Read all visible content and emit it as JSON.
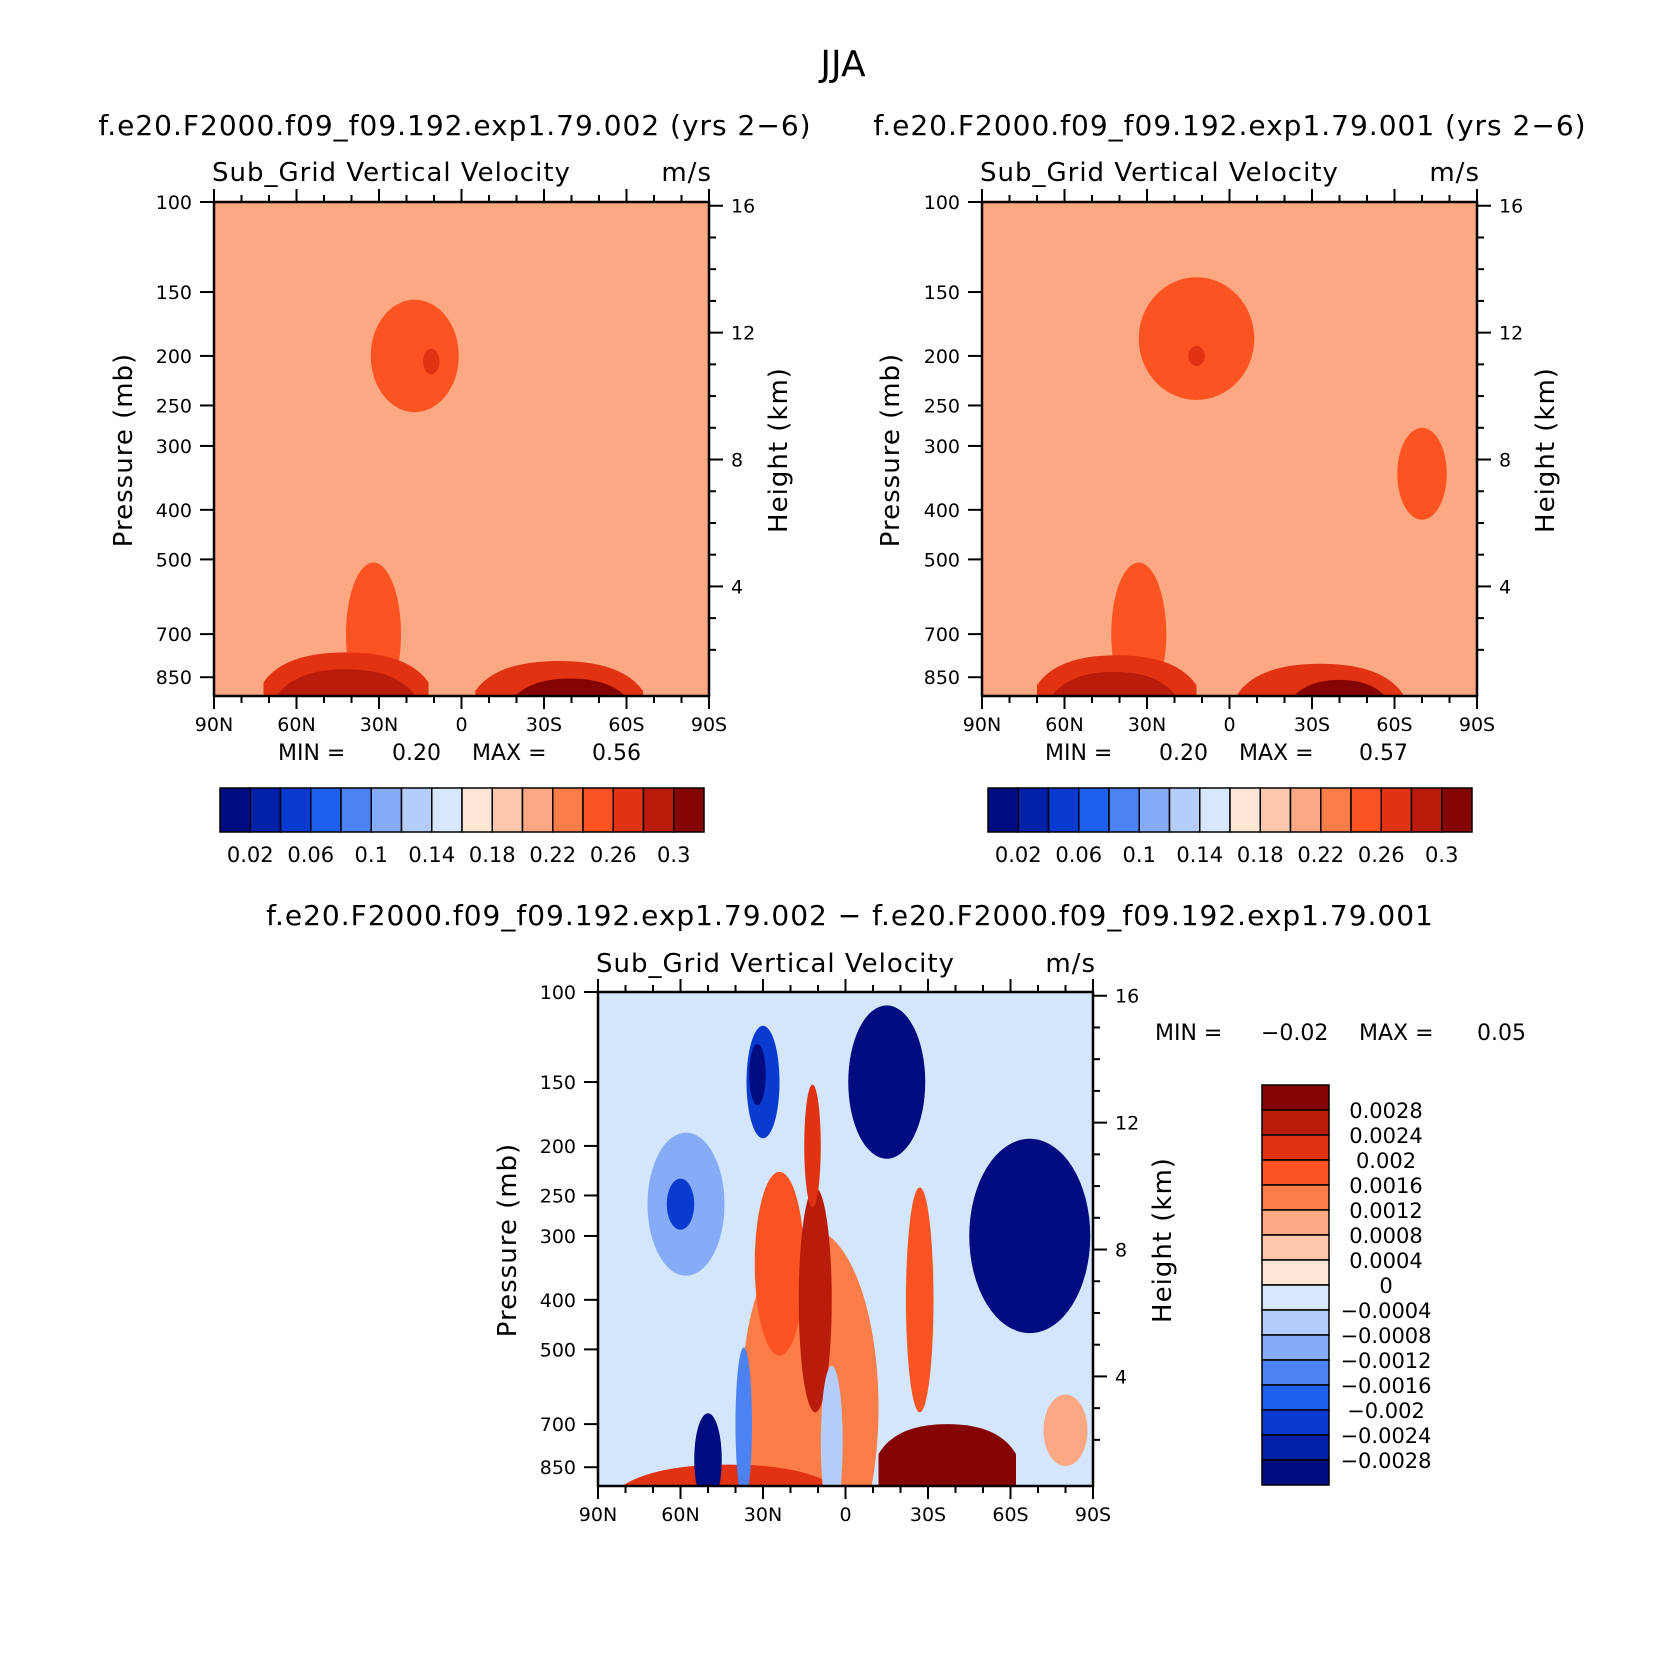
{
  "page": {
    "title": "JJA",
    "background": "#ffffff"
  },
  "panels": [
    {
      "title": "f.e20.F2000.f09_f09.192.exp1.79.002 (yrs 2−6)",
      "left_label": "Sub_Grid Vertical Velocity",
      "right_label": "m/s",
      "ylabel": "Pressure (mb)",
      "ylabel_right": "Height (km)",
      "min_label": "MIN =",
      "min_value": "0.20",
      "max_label": "MAX =",
      "max_value": "0.56",
      "background_color": "#fca983"
    },
    {
      "title": "f.e20.F2000.f09_f09.192.exp1.79.001 (yrs 2−6)",
      "left_label": "Sub_Grid Vertical Velocity",
      "right_label": "m/s",
      "ylabel": "Pressure (mb)",
      "ylabel_right": "Height (km)",
      "min_label": "MIN =",
      "min_value": "0.20",
      "max_label": "MAX =",
      "max_value": "0.57",
      "background_color": "#fca983"
    },
    {
      "title": "f.e20.F2000.f09_f09.192.exp1.79.002 − f.e20.F2000.f09_f09.192.exp1.79.001",
      "left_label": "Sub_Grid Vertical Velocity",
      "right_label": "m/s",
      "ylabel": "Pressure (mb)",
      "ylabel_right": "Height (km)",
      "min_label": "MIN =",
      "min_value": "−0.02",
      "max_label": "MAX =",
      "max_value": "0.05",
      "background_color": "#d4e6fb"
    }
  ],
  "colorbar_abs": {
    "colors": [
      "#000c80",
      "#0321a8",
      "#0a3bd1",
      "#1f5ff0",
      "#4d82f5",
      "#86acf7",
      "#b4cdfa",
      "#d8e7fc",
      "#fde6d4",
      "#fcc7ad",
      "#fca983",
      "#fd7d48",
      "#fb5422",
      "#e13211",
      "#b91c0a",
      "#860303"
    ],
    "labels": [
      "0.02",
      "0.06",
      "0.1",
      "0.14",
      "0.18",
      "0.22",
      "0.26",
      "0.3"
    ]
  },
  "colorbar_diff": {
    "colors": [
      "#000c80",
      "#0321a8",
      "#0a3bd1",
      "#1f5ff0",
      "#4d82f5",
      "#86acf7",
      "#b4cdfa",
      "#d8e7fc",
      "#fde6d4",
      "#fcc7ad",
      "#fca983",
      "#fd7d48",
      "#fb5422",
      "#e13211",
      "#b91c0a",
      "#860303"
    ],
    "labels": [
      "0.0028",
      "0.0024",
      "0.002",
      "0.0016",
      "0.0012",
      "0.0008",
      "0.0004",
      "0",
      "−0.0004",
      "−0.0008",
      "−0.0012",
      "−0.0016",
      "−0.002",
      "−0.0024",
      "−0.0028"
    ]
  },
  "chart_data": [
    {
      "type": "heatmap",
      "title": "f.e20.F2000.f09_f09.192.exp1.79.002 (yrs 2−6)",
      "variable": "Sub_Grid Vertical Velocity",
      "units": "m/s",
      "x_ticks": [
        "90N",
        "60N",
        "30N",
        "0",
        "30S",
        "60S",
        "90S"
      ],
      "x_values": [
        90,
        60,
        30,
        0,
        -30,
        -60,
        -90
      ],
      "y_ticks": [
        "100",
        "150",
        "200",
        "250",
        "300",
        "400",
        "500",
        "700",
        "850"
      ],
      "y_values": [
        100,
        150,
        200,
        250,
        300,
        400,
        500,
        700,
        850
      ],
      "y_right_ticks": [
        "16",
        "12",
        "8",
        "4"
      ],
      "y_right_values": [
        16,
        12,
        8,
        4
      ],
      "xlim": [
        90,
        -90
      ],
      "ylim": [
        100,
        925
      ],
      "min": 0.2,
      "max": 0.56,
      "features": [
        {
          "shape": "blob",
          "lat": 17,
          "p": 200,
          "dlat": 16,
          "dlogp": 0.11,
          "value": 0.24
        },
        {
          "shape": "blob",
          "lat": 11,
          "p": 205,
          "dlat": 3,
          "dlogp": 0.025,
          "value": 0.27
        },
        {
          "shape": "blob",
          "lat": 32,
          "p": 700,
          "dlat": 10,
          "dlogp": 0.14,
          "value": 0.24
        },
        {
          "shape": "band",
          "lat0": 72,
          "lat1": 12,
          "p_top": 760,
          "value": 0.26
        },
        {
          "shape": "band",
          "lat0": 68,
          "lat1": 16,
          "p_top": 820,
          "value": 0.29
        },
        {
          "shape": "band",
          "lat0": -5,
          "lat1": -66,
          "p_top": 790,
          "value": 0.26
        },
        {
          "shape": "band",
          "lat0": -16,
          "lat1": -63,
          "p_top": 855,
          "value": 0.31
        }
      ]
    },
    {
      "type": "heatmap",
      "title": "f.e20.F2000.f09_f09.192.exp1.79.001 (yrs 2−6)",
      "variable": "Sub_Grid Vertical Velocity",
      "units": "m/s",
      "x_ticks": [
        "90N",
        "60N",
        "30N",
        "0",
        "30S",
        "60S",
        "90S"
      ],
      "x_values": [
        90,
        60,
        30,
        0,
        -30,
        -60,
        -90
      ],
      "y_ticks": [
        "100",
        "150",
        "200",
        "250",
        "300",
        "400",
        "500",
        "700",
        "850"
      ],
      "y_values": [
        100,
        150,
        200,
        250,
        300,
        400,
        500,
        700,
        850
      ],
      "y_right_ticks": [
        "16",
        "12",
        "8",
        "4"
      ],
      "y_right_values": [
        16,
        12,
        8,
        4
      ],
      "xlim": [
        90,
        -90
      ],
      "ylim": [
        100,
        925
      ],
      "min": 0.2,
      "max": 0.57,
      "features": [
        {
          "shape": "blob",
          "lat": 12,
          "p": 185,
          "dlat": 21,
          "dlogp": 0.12,
          "value": 0.24
        },
        {
          "shape": "blob",
          "lat": 12,
          "p": 200,
          "dlat": 3,
          "dlogp": 0.02,
          "value": 0.27
        },
        {
          "shape": "blob",
          "lat": -70,
          "p": 340,
          "dlat": 9,
          "dlogp": 0.09,
          "value": 0.24
        },
        {
          "shape": "blob",
          "lat": 33,
          "p": 700,
          "dlat": 10,
          "dlogp": 0.14,
          "value": 0.24
        },
        {
          "shape": "band",
          "lat0": 70,
          "lat1": 12,
          "p_top": 770,
          "value": 0.26
        },
        {
          "shape": "band",
          "lat0": 66,
          "lat1": 18,
          "p_top": 830,
          "value": 0.29
        },
        {
          "shape": "band",
          "lat0": -3,
          "lat1": -63,
          "p_top": 800,
          "value": 0.26
        },
        {
          "shape": "band",
          "lat0": -20,
          "lat1": -60,
          "p_top": 860,
          "value": 0.3
        }
      ]
    },
    {
      "type": "heatmap",
      "title": "f.e20.F2000.f09_f09.192.exp1.79.002 − f.e20.F2000.f09_f09.192.exp1.79.001",
      "variable": "Sub_Grid Vertical Velocity",
      "units": "m/s",
      "x_ticks": [
        "90N",
        "60N",
        "30N",
        "0",
        "30S",
        "60S",
        "90S"
      ],
      "x_values": [
        90,
        60,
        30,
        0,
        -30,
        -60,
        -90
      ],
      "y_ticks": [
        "100",
        "150",
        "200",
        "250",
        "300",
        "400",
        "500",
        "700",
        "850"
      ],
      "y_values": [
        100,
        150,
        200,
        250,
        300,
        400,
        500,
        700,
        850
      ],
      "y_right_ticks": [
        "16",
        "12",
        "8",
        "4"
      ],
      "y_right_values": [
        16,
        12,
        8,
        4
      ],
      "xlim": [
        90,
        -90
      ],
      "ylim": [
        100,
        925
      ],
      "min": -0.02,
      "max": 0.05,
      "features": [
        {
          "shape": "blob",
          "lat": 58,
          "p": 260,
          "dlat": 14,
          "dlogp": 0.14,
          "value": -0.001
        },
        {
          "shape": "blob",
          "lat": 60,
          "p": 260,
          "dlat": 5,
          "dlogp": 0.05,
          "value": -0.0024
        },
        {
          "shape": "blob",
          "lat": 30,
          "p": 150,
          "dlat": 6,
          "dlogp": 0.11,
          "value": -0.0024
        },
        {
          "shape": "blob",
          "lat": 32,
          "p": 145,
          "dlat": 3,
          "dlogp": 0.06,
          "value": -0.003
        },
        {
          "shape": "blob",
          "lat": 13,
          "p": 650,
          "dlat": 25,
          "dlogp": 0.35,
          "value": 0.0014
        },
        {
          "shape": "blob",
          "lat": 24,
          "p": 340,
          "dlat": 9,
          "dlogp": 0.18,
          "value": 0.0016
        },
        {
          "shape": "blob",
          "lat": 11,
          "p": 400,
          "dlat": 6,
          "dlogp": 0.22,
          "value": 0.0024
        },
        {
          "shape": "blob",
          "lat": 12,
          "p": 200,
          "dlat": 3,
          "dlogp": 0.12,
          "value": 0.002
        },
        {
          "shape": "blob",
          "lat": -27,
          "p": 400,
          "dlat": 5,
          "dlogp": 0.22,
          "value": 0.0018
        },
        {
          "shape": "blob",
          "lat": -15,
          "p": 150,
          "dlat": 14,
          "dlogp": 0.15,
          "value": -0.003
        },
        {
          "shape": "blob",
          "lat": -67,
          "p": 300,
          "dlat": 22,
          "dlogp": 0.19,
          "value": -0.003
        },
        {
          "shape": "band",
          "lat0": -12,
          "lat1": -62,
          "p_top": 700,
          "value": 0.003
        },
        {
          "shape": "band",
          "lat0": 85,
          "lat1": 0,
          "p_top": 840,
          "value": 0.0022
        },
        {
          "shape": "blob",
          "lat": 50,
          "p": 820,
          "dlat": 5,
          "dlogp": 0.09,
          "value": -0.003
        },
        {
          "shape": "blob",
          "lat": 37,
          "p": 700,
          "dlat": 3,
          "dlogp": 0.15,
          "value": -0.0016
        },
        {
          "shape": "blob",
          "lat": 5,
          "p": 760,
          "dlat": 4,
          "dlogp": 0.15,
          "value": -0.0008
        },
        {
          "shape": "blob",
          "lat": -80,
          "p": 720,
          "dlat": 8,
          "dlogp": 0.07,
          "value": 0.001
        }
      ]
    }
  ]
}
